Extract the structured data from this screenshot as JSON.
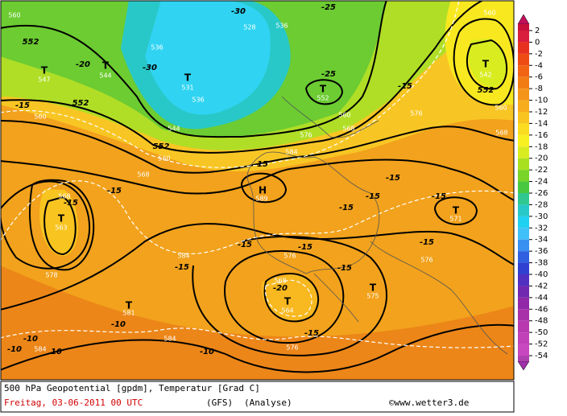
{
  "map": {
    "labels": [
      "560",
      "552",
      "-20",
      "T",
      "547",
      "T",
      "544",
      "-30",
      "536",
      "T",
      "531",
      "536",
      "528",
      "536",
      "-30",
      "-25",
      "-25",
      "T",
      "552",
      "560",
      "568",
      "576",
      "584",
      "-15",
      "576",
      "T",
      "542",
      "552",
      "560",
      "560",
      "568",
      "-15",
      "552",
      "560",
      "544",
      "552",
      "560",
      "568",
      "-15",
      "H",
      "589",
      "-15",
      "568",
      "T",
      "563",
      "-15",
      "-15",
      "-15",
      "-15",
      "-15",
      "T",
      "571",
      "-15",
      "-15",
      "-15",
      "584",
      "-15",
      "576",
      "-15",
      "576",
      "578",
      "568",
      "-20",
      "T",
      "564",
      "T",
      "575",
      "T",
      "581",
      "-10",
      "-15",
      "576",
      "-10",
      "-10",
      "584",
      "10",
      "584",
      "-10"
    ]
  },
  "legend": {
    "ticks": [
      2,
      0,
      -2,
      -4,
      -6,
      -8,
      -10,
      -12,
      -14,
      -16,
      -18,
      -20,
      -22,
      -24,
      -26,
      -28,
      -30,
      -32,
      -34,
      -36,
      -38,
      -40,
      -42,
      -44,
      -46,
      -48,
      -50,
      -52,
      -54
    ],
    "colors": [
      "#d81e3c",
      "#e8301e",
      "#ee4a14",
      "#f06414",
      "#f27c14",
      "#f49418",
      "#f6ac1c",
      "#f8c420",
      "#fadc20",
      "#f8f020",
      "#d8ec20",
      "#a8e020",
      "#78d428",
      "#48c840",
      "#30c890",
      "#28c8c8",
      "#20d0f0",
      "#40c0f8",
      "#3890f0",
      "#3060e0",
      "#3040d0",
      "#5030c0",
      "#7028b0",
      "#9028a8",
      "#a830a8",
      "#b838b0",
      "#c040b8",
      "#c848c0"
    ]
  },
  "footer": {
    "title": "500 hPa Geopotential [gpdm], Temperatur [Grad C]",
    "date": "Freitag, 03-06-2011   00 UTC",
    "model": "(GFS)",
    "analysis": "(Analyse)",
    "copyright": "©www.wetter3.de"
  }
}
